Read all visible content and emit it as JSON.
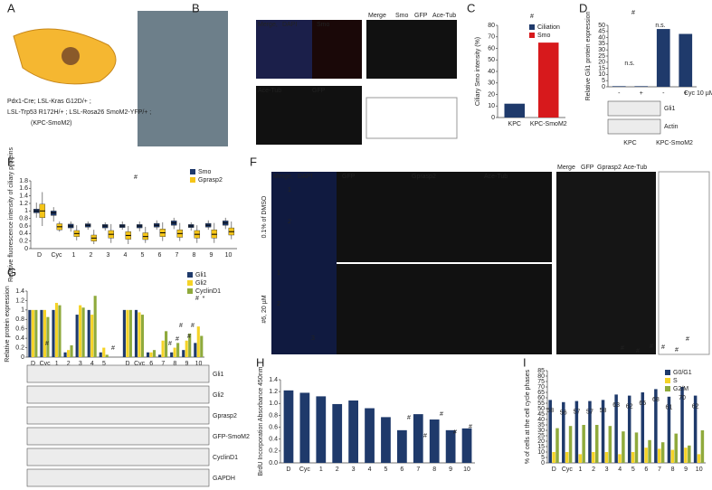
{
  "panels": {
    "letters": [
      "A",
      "B",
      "C",
      "D",
      "E",
      "F",
      "G",
      "H",
      "I"
    ]
  },
  "panel_a": {
    "lines": [
      "Pdx1-Cre; LSL-Kras G12D/+ ;",
      "LSL-Trp53 R172H/+ ; LSL-Rosa26 SmoM2-YFP/+ ;",
      "(KPC-SmoM2)"
    ]
  },
  "panel_b": {
    "labels": [
      "Merge, ",
      "DAPI",
      "Smo",
      "Merge",
      "Smo",
      "GFP",
      "Ace-Tub",
      "Ace-Tub",
      "GFP"
    ]
  },
  "panel_f": {
    "top_labels": [
      "Merge, ",
      "DAPI",
      "GFP",
      "Gprasp2",
      "Ace-Tub"
    ],
    "inset_labels": [
      "Merge",
      "GFP",
      "Gprasp2",
      "Ace-Tub"
    ],
    "rows": [
      "0.1% of DMSO",
      "#6, 20 µM"
    ],
    "roi": [
      "1",
      "2",
      "1",
      "2",
      "3"
    ]
  },
  "chart_data": [
    {
      "type": "bar",
      "ylabel": "Ciliary Smo intensity (%)",
      "categories": [
        "KPC",
        "KPC-SmoM2"
      ],
      "values": [
        12,
        65
      ],
      "colors": [
        "#1f3a6b",
        "#d7191c"
      ],
      "legend": [
        "Ciliation",
        "Smo"
      ],
      "ylim": [
        0,
        80
      ],
      "yticks": [
        0,
        10,
        20,
        30,
        40,
        50,
        60,
        70,
        80
      ],
      "annotations": [
        "#"
      ]
    },
    {
      "type": "bar",
      "ylabel": "Relative Gli1 protein expression",
      "categories": [
        "-",
        "+",
        "-",
        "+"
      ],
      "values": [
        0.5,
        0.5,
        47,
        43
      ],
      "color": "#1f3a6b",
      "ylim": [
        0,
        50
      ],
      "yticks": [
        0,
        5,
        10,
        15,
        20,
        25,
        30,
        35,
        40,
        45,
        50
      ],
      "treatment": "Cyc 10 µM",
      "groups": [
        "KPC",
        "KPC-SmoM2"
      ],
      "blots": [
        "Gli1",
        "Actin"
      ],
      "annotations": [
        "n.s.",
        "n.s.",
        "#"
      ]
    },
    {
      "type": "box",
      "ylabel": "Relative fluorescence intensity of ciliary proteins",
      "categories": [
        "D",
        "Cyc",
        "1",
        "2",
        "3",
        "4",
        "5",
        "6",
        "7",
        "8",
        "9",
        "10"
      ],
      "ylim": [
        0,
        1.8
      ],
      "yticks": [
        0,
        0.2,
        0.4,
        0.6,
        0.8,
        1,
        1.2,
        1.4,
        1.6,
        1.8
      ],
      "annotations": [
        "#"
      ],
      "series": [
        {
          "name": "Smo",
          "color": "#1f3a6b",
          "median": [
            1.0,
            0.95,
            0.6,
            0.62,
            0.6,
            0.6,
            0.6,
            0.62,
            0.68,
            0.6,
            0.62,
            0.68
          ],
          "q1": [
            0.95,
            0.88,
            0.55,
            0.57,
            0.55,
            0.56,
            0.55,
            0.57,
            0.62,
            0.56,
            0.57,
            0.62
          ],
          "q3": [
            1.05,
            1.0,
            0.65,
            0.66,
            0.64,
            0.64,
            0.64,
            0.67,
            0.74,
            0.64,
            0.67,
            0.74
          ],
          "min": [
            0.82,
            0.72,
            0.45,
            0.5,
            0.48,
            0.5,
            0.46,
            0.5,
            0.52,
            0.48,
            0.5,
            0.52
          ],
          "max": [
            1.22,
            1.1,
            0.72,
            0.72,
            0.7,
            0.72,
            0.72,
            0.75,
            0.82,
            0.7,
            0.75,
            0.82
          ]
        },
        {
          "name": "Gprasp2",
          "color": "#f5c518",
          "median": [
            1.0,
            0.58,
            0.4,
            0.28,
            0.38,
            0.35,
            0.32,
            0.42,
            0.4,
            0.38,
            0.38,
            0.45
          ],
          "q1": [
            0.82,
            0.5,
            0.32,
            0.2,
            0.28,
            0.25,
            0.24,
            0.32,
            0.3,
            0.28,
            0.28,
            0.36
          ],
          "q3": [
            1.18,
            0.66,
            0.48,
            0.36,
            0.48,
            0.45,
            0.42,
            0.52,
            0.5,
            0.48,
            0.5,
            0.55
          ],
          "min": [
            0.6,
            0.45,
            0.22,
            0.12,
            0.15,
            0.12,
            0.15,
            0.2,
            0.2,
            0.15,
            0.15,
            0.25
          ],
          "max": [
            1.5,
            0.72,
            0.62,
            0.5,
            0.65,
            0.6,
            0.58,
            0.7,
            0.68,
            0.62,
            0.68,
            0.72
          ]
        }
      ]
    },
    {
      "type": "bar",
      "ylabel": "Relative protein expression",
      "categories": [
        "D",
        "Cyc",
        "1",
        "2",
        "3",
        "4",
        "5",
        "D",
        "Cyc",
        "6",
        "7",
        "8",
        "9",
        "10"
      ],
      "ylim": [
        0,
        1.4
      ],
      "yticks": [
        0,
        0.2,
        0.4,
        0.6,
        0.8,
        1,
        1.2,
        1.4
      ],
      "blots": [
        "Gli1",
        "Gli2",
        "Gprasp2",
        "GFP-SmoM2",
        "CyclinD1",
        "GAPDH"
      ],
      "annotations": [
        "#",
        "#",
        "#",
        "#",
        "#",
        "#",
        "#",
        "#",
        "*"
      ],
      "series": [
        {
          "name": "Gli1",
          "color": "#1f3a6b",
          "values": [
            1,
            1,
            1,
            0.1,
            0.9,
            1,
            0.1,
            1,
            1,
            0.1,
            0.05,
            0.1,
            0.15,
            0.3
          ]
        },
        {
          "name": "Gli2",
          "color": "#f5d327",
          "values": [
            1,
            1,
            1.15,
            0.15,
            1.1,
            0.9,
            0.2,
            1,
            0.95,
            0.1,
            0.35,
            0.2,
            0.35,
            0.65
          ]
        },
        {
          "name": "CyclinD1",
          "color": "#8faa3c",
          "values": [
            1,
            0.85,
            1.1,
            0.25,
            1.05,
            1.3,
            0.05,
            1,
            0.9,
            0.15,
            0.55,
            0.3,
            0.5,
            0.45
          ]
        }
      ]
    },
    {
      "type": "bar",
      "ylabel": "BrdU Incorporation Absorbance 450nm",
      "categories": [
        "D",
        "Cyc",
        "1",
        "2",
        "3",
        "4",
        "5",
        "6",
        "7",
        "8",
        "9",
        "10"
      ],
      "values": [
        1.22,
        1.18,
        1.12,
        0.99,
        1.05,
        0.92,
        0.77,
        0.55,
        0.82,
        0.73,
        0.55,
        0.58
      ],
      "color": "#1f3a6b",
      "ylim": [
        0,
        1.4
      ],
      "yticks": [
        {
          "value": 0,
          "label": "0.0"
        },
        0.2,
        0.4,
        0.6,
        0.8,
        {
          "value": 1,
          "label": "1.0"
        },
        1.2,
        1.4
      ],
      "annotations": [
        "#",
        "#",
        "#",
        "#",
        "#"
      ]
    },
    {
      "type": "bar",
      "ylabel": "% of cells at the cell cycle phases",
      "categories": [
        "D",
        "Cyc",
        "1",
        "2",
        "3",
        "4",
        "5",
        "6",
        "7",
        "8",
        "9",
        "10"
      ],
      "ylim": [
        0,
        85
      ],
      "yticks": [
        0,
        5,
        10,
        15,
        20,
        25,
        30,
        35,
        40,
        45,
        50,
        55,
        60,
        65,
        70,
        75,
        80,
        85
      ],
      "annotations": [
        "#",
        "#",
        "#",
        "#",
        "#",
        "#"
      ],
      "series": [
        {
          "name": "G0/G1",
          "color": "#1f3a6b",
          "values": [
            58,
            56,
            57,
            57,
            58,
            63,
            62,
            65,
            68,
            61,
            70,
            62
          ]
        },
        {
          "name": "S",
          "color": "#f5d327",
          "values": [
            10,
            10,
            8,
            10,
            10,
            8,
            10,
            14,
            13,
            12,
            14,
            8
          ]
        },
        {
          "name": "G2/M",
          "color": "#8faa3c",
          "values": [
            32,
            34,
            35,
            35,
            34,
            29,
            28,
            21,
            19,
            27,
            16,
            30
          ]
        }
      ]
    }
  ]
}
